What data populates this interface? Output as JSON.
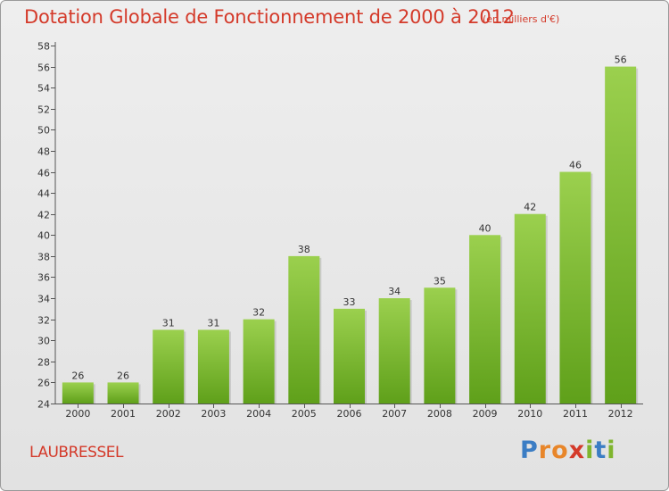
{
  "header": {
    "title": "Dotation Globale de Fonctionnement de 2000 à 2012",
    "unit": "(en milliers d'€)"
  },
  "footer": {
    "commune": "LAUBRESSEL",
    "logo": "Proxiti",
    "logo_letters": [
      {
        "ch": "P",
        "color": "#3b7dc4"
      },
      {
        "ch": "r",
        "color": "#e8862a"
      },
      {
        "ch": "o",
        "color": "#e8862a"
      },
      {
        "ch": "x",
        "color": "#d43a2a"
      },
      {
        "ch": "i",
        "color": "#7fb52e"
      },
      {
        "ch": "t",
        "color": "#3b7dc4"
      },
      {
        "ch": "i",
        "color": "#7fb52e"
      }
    ]
  },
  "colors": {
    "title": "#d43a2a",
    "bar_top": "#9bd04e",
    "bar_bottom": "#5fa01a"
  },
  "chart_data": {
    "type": "bar",
    "title": "Dotation Globale de Fonctionnement de 2000 à 2012",
    "subtitle": "(en milliers d'€)",
    "xlabel": "",
    "ylabel": "",
    "categories": [
      "2000",
      "2001",
      "2002",
      "2003",
      "2004",
      "2005",
      "2006",
      "2007",
      "2008",
      "2009",
      "2010",
      "2011",
      "2012"
    ],
    "values": [
      26,
      26,
      31,
      31,
      32,
      38,
      33,
      34,
      35,
      40,
      42,
      46,
      56
    ],
    "ylim": [
      24,
      58
    ],
    "yticks": [
      24,
      26,
      28,
      30,
      32,
      34,
      36,
      38,
      40,
      42,
      44,
      46,
      48,
      50,
      52,
      54,
      56,
      58
    ],
    "grid": false,
    "legend": "none"
  }
}
